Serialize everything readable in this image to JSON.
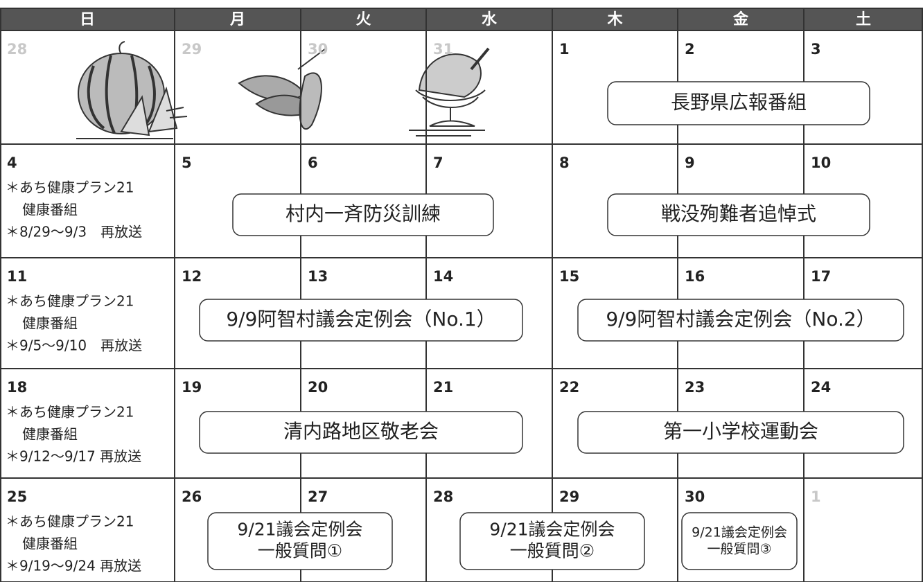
{
  "header": {
    "days": [
      "日",
      "月",
      "火",
      "水",
      "木",
      "金",
      "土"
    ]
  },
  "weeks": [
    {
      "days": [
        28,
        29,
        30,
        31,
        1,
        2,
        3
      ]
    },
    {
      "days": [
        4,
        5,
        6,
        7,
        8,
        9,
        10
      ],
      "note": [
        "＊あち健康プラン21",
        "健康番組",
        "＊8/29〜9/3　再放送"
      ]
    },
    {
      "days": [
        11,
        12,
        13,
        14,
        15,
        16,
        17
      ],
      "note": [
        "＊あち健康プラン21",
        "健康番組",
        "＊9/5〜9/10　再放送"
      ]
    },
    {
      "days": [
        18,
        19,
        20,
        21,
        22,
        23,
        24
      ],
      "note": [
        "＊あち健康プラン21",
        "健康番組",
        "＊9/12〜9/17 再放送"
      ]
    },
    {
      "days": [
        25,
        26,
        27,
        28,
        29,
        30,
        1
      ],
      "note": [
        "＊あち健康プラン21",
        "健康番組",
        "＊9/19〜9/24 再放送"
      ]
    }
  ],
  "events": [
    {
      "lines": [
        "長野県広報番組"
      ]
    },
    {
      "lines": [
        "村内一斉防災訓練"
      ]
    },
    {
      "lines": [
        "戦没殉難者追悼式"
      ]
    },
    {
      "lines": [
        "9/9阿智村議会定例会（No.1）"
      ]
    },
    {
      "lines": [
        "9/9阿智村議会定例会（No.2）"
      ]
    },
    {
      "lines": [
        "清内路地区敬老会"
      ]
    },
    {
      "lines": [
        "第一小学校運動会"
      ]
    },
    {
      "lines": [
        "9/21議会定例会",
        "一般質問①"
      ]
    },
    {
      "lines": [
        "9/21議会定例会",
        "一般質問②"
      ]
    },
    {
      "lines": [
        "9/21議会定例会",
        "一般質問③"
      ]
    }
  ]
}
